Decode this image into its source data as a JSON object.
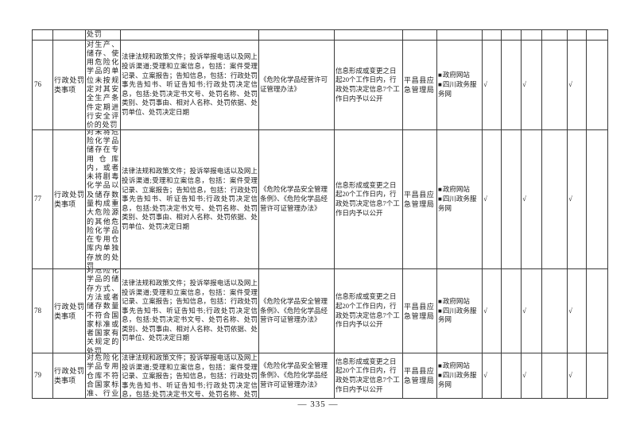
{
  "page": {
    "page_number": "— 335 —",
    "background_color": "#ffffff",
    "border_color": "#3a3a3a"
  },
  "table": {
    "bullet": "■",
    "carryover": {
      "item_tail": "处罚"
    },
    "rows": [
      {
        "seq": "76",
        "category": "行政处罚类事项",
        "item": "对生产、储存、使用危险化学品的单位未按规定对其安全生产条件定期进行安全评价的处罚",
        "content": "法律法规和政策文件；投诉举报电话以及网上投诉渠道;受理和立案信息，包括：案件受理记录、立案报告；告知信息，包括：行政处罚事先告知书、听证告知书;行政处罚决定信息，包括:处罚决定书文号、处罚名称、处罚类别、处罚事由、相对人名称、处罚依据、处罚单位、处罚决定日期",
        "basis": "《危险化学品经营许可证管理办法》",
        "deadline": "信息形成或变更之日起20个工作日内，行政处罚决定信息7个工作日内予以公开",
        "agency": "平昌县应急管理局",
        "channels": [
          "政府网站",
          "四川政务服务网"
        ],
        "checks": [
          "√",
          "",
          "√",
          "",
          "√",
          ""
        ]
      },
      {
        "seq": "77",
        "category": "行政处罚类事项",
        "item": "对未将危险化学品储存在专用仓库内，或者未将剧毒化学品以及储存数量构成重大危险源的其他危险化学品在专用仓库内单独存放的处罚",
        "content": "法律法规和政策文件；投诉举报电话以及网上投诉渠道;受理和立案信息，包括：案件受理记录、立案报告；告知信息，包括：行政处罚事先告知书、听证告知书;行政处罚决定信息，包括:处罚决定书文号、处罚名称、处罚类别、处罚事由、相对人名称、处罚依据、处罚单位、处罚决定日期",
        "basis": "《危险化学品安全管理条例》、《危险化学品经营许可证管理办法》",
        "deadline": "信息形成或变更之日起20个工作日内，行政处罚决定信息7个工作日内予以公开",
        "agency": "平昌县应急管理局",
        "channels": [
          "政府网站",
          "四川政务服务网"
        ],
        "checks": [
          "√",
          "",
          "√",
          "",
          "√",
          ""
        ]
      },
      {
        "seq": "78",
        "category": "行政处罚类事项",
        "item": "对危险化学品的储存方式、方法或者储存数量不符合国家标准或者国家有关规定的处罚",
        "content": "法律法规和政策文件；投诉举报电话以及网上投诉渠道;受理和立案信息，包括：案件受理记录、立案报告；告知信息，包括：行政处罚事先告知书、听证告知书;行政处罚决定信息，包括:处罚决定书文号、处罚名称、处罚类别、处罚事由、相对人名称、处罚依据、处罚单位、处罚决定日期",
        "basis": "《危险化学品安全管理条例》、《危险化学品经营许可证管理办法》",
        "deadline": "信息形成或变更之日起20个工作日内，行政处罚决定信息7个工作日内予以公开",
        "agency": "平昌县应急管理局",
        "channels": [
          "政府网站",
          "四川政务服务网"
        ],
        "checks": [
          "√",
          "",
          "√",
          "",
          "√",
          ""
        ]
      },
      {
        "seq": "79",
        "category": "行政处罚类事项",
        "item": "对危险化学品专用仓库不符合国家标准、行业标",
        "content": "法律法规和政策文件；投诉举报电话以及网上投诉渠道;受理和立案信息，包括：案件受理记录、立案报告；告知信息，包括：行政处罚事先告知书、听证告知书;行政处罚决定信息，包括:处罚决定书文号、处罚名称、处罚类别、",
        "basis": "《危险化学品安全管理条例》、《危险化学品经营许可证管理办法》",
        "deadline": "信息形成或变更之日起20个工作日内，行政处罚决定信息7个工作日内予以公开",
        "agency": "平昌县应急管理局",
        "channels": [
          "政府网站",
          "四川政务服务网"
        ],
        "checks": [
          "√",
          "",
          "√",
          "",
          "√",
          ""
        ]
      }
    ]
  }
}
